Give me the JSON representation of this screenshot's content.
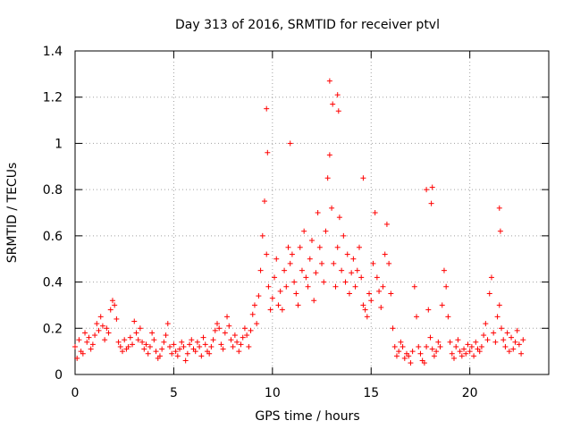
{
  "chart_data": {
    "type": "scatter",
    "title": "Day 313 of 2016, SRMTID for receiver ptvl",
    "xlabel": "GPS time / hours",
    "ylabel": "SRMTID / TECUs",
    "xlim": [
      0,
      24
    ],
    "ylim": [
      0,
      1.4
    ],
    "xticks": [
      "0",
      "5",
      "10",
      "15",
      "20"
    ],
    "xtick_values": [
      0,
      5,
      10,
      15,
      20
    ],
    "yticks": [
      "0",
      "0.2",
      "0.4",
      "0.6",
      "0.8",
      "1",
      "1.2",
      "1.4"
    ],
    "ytick_values": [
      0,
      0.2,
      0.4,
      0.6,
      0.8,
      1.0,
      1.2,
      1.4
    ],
    "grid": true,
    "marker": "+",
    "color": "#ff0000",
    "series": [
      {
        "name": "SRMTID",
        "x": [
          0.0,
          0.1,
          0.2,
          0.3,
          0.4,
          0.5,
          0.6,
          0.7,
          0.8,
          0.9,
          1.0,
          1.1,
          1.2,
          1.3,
          1.4,
          1.5,
          1.6,
          1.7,
          1.8,
          1.9,
          2.0,
          2.1,
          2.2,
          2.3,
          2.4,
          2.5,
          2.6,
          2.7,
          2.8,
          2.9,
          3.0,
          3.1,
          3.2,
          3.3,
          3.4,
          3.5,
          3.6,
          3.7,
          3.8,
          3.9,
          4.0,
          4.1,
          4.2,
          4.3,
          4.4,
          4.5,
          4.6,
          4.7,
          4.8,
          4.9,
          5.0,
          5.1,
          5.2,
          5.3,
          5.4,
          5.5,
          5.6,
          5.7,
          5.8,
          5.9,
          6.0,
          6.1,
          6.2,
          6.3,
          6.4,
          6.5,
          6.6,
          6.7,
          6.8,
          6.9,
          7.0,
          7.1,
          7.2,
          7.3,
          7.4,
          7.5,
          7.6,
          7.7,
          7.8,
          7.9,
          8.0,
          8.1,
          8.2,
          8.3,
          8.4,
          8.5,
          8.6,
          8.7,
          8.8,
          8.9,
          9.0,
          9.1,
          9.2,
          9.3,
          9.4,
          9.5,
          9.6,
          9.7,
          9.8,
          9.9,
          10.0,
          10.1,
          10.2,
          10.3,
          10.4,
          10.5,
          10.6,
          10.7,
          10.8,
          10.9,
          11.0,
          11.1,
          11.2,
          11.3,
          11.4,
          11.5,
          11.6,
          11.7,
          11.8,
          11.9,
          12.0,
          12.1,
          12.2,
          12.3,
          12.4,
          12.5,
          12.6,
          12.7,
          12.8,
          12.9,
          13.0,
          13.1,
          13.2,
          13.3,
          13.4,
          13.5,
          13.6,
          13.7,
          13.8,
          13.9,
          14.0,
          14.1,
          14.2,
          14.3,
          14.4,
          14.5,
          14.6,
          14.7,
          14.8,
          14.9,
          15.0,
          15.1,
          15.2,
          15.3,
          15.4,
          15.5,
          15.6,
          15.7,
          15.8,
          15.9,
          16.0,
          16.1,
          16.2,
          16.3,
          16.4,
          16.5,
          16.6,
          16.7,
          16.8,
          16.9,
          17.0,
          17.1,
          17.2,
          17.3,
          17.4,
          17.5,
          17.6,
          17.7,
          17.8,
          17.9,
          18.0,
          18.1,
          18.2,
          18.3,
          18.4,
          18.5,
          18.6,
          18.7,
          18.8,
          18.9,
          19.0,
          19.1,
          19.2,
          19.3,
          19.4,
          19.5,
          19.6,
          19.7,
          19.8,
          19.9,
          20.0,
          20.1,
          20.2,
          20.3,
          20.4,
          20.5,
          20.6,
          20.7,
          20.8,
          20.9,
          21.0,
          21.1,
          21.2,
          21.3,
          21.4,
          21.5,
          21.6,
          21.7,
          21.8,
          21.9,
          22.0,
          22.1,
          22.2,
          22.3,
          22.4,
          22.5,
          22.6,
          22.7,
          9.7,
          9.75,
          10.9,
          12.9,
          13.05,
          13.3,
          13.35,
          14.6,
          17.8,
          18.05,
          18.1,
          21.5,
          21.55
        ],
        "y": [
          0.12,
          0.07,
          0.15,
          0.1,
          0.09,
          0.18,
          0.14,
          0.16,
          0.11,
          0.13,
          0.17,
          0.22,
          0.19,
          0.25,
          0.21,
          0.15,
          0.2,
          0.18,
          0.28,
          0.32,
          0.3,
          0.24,
          0.14,
          0.12,
          0.1,
          0.15,
          0.11,
          0.12,
          0.16,
          0.13,
          0.23,
          0.18,
          0.15,
          0.2,
          0.14,
          0.11,
          0.13,
          0.09,
          0.12,
          0.18,
          0.15,
          0.1,
          0.07,
          0.08,
          0.11,
          0.14,
          0.17,
          0.22,
          0.12,
          0.09,
          0.13,
          0.1,
          0.08,
          0.11,
          0.14,
          0.12,
          0.06,
          0.09,
          0.13,
          0.15,
          0.11,
          0.1,
          0.14,
          0.12,
          0.08,
          0.16,
          0.13,
          0.1,
          0.09,
          0.12,
          0.15,
          0.19,
          0.22,
          0.2,
          0.13,
          0.11,
          0.18,
          0.25,
          0.21,
          0.15,
          0.12,
          0.17,
          0.14,
          0.1,
          0.13,
          0.16,
          0.2,
          0.17,
          0.12,
          0.19,
          0.26,
          0.3,
          0.22,
          0.34,
          0.45,
          0.6,
          0.75,
          0.52,
          0.38,
          0.28,
          0.33,
          0.42,
          0.5,
          0.3,
          0.36,
          0.28,
          0.45,
          0.38,
          0.55,
          0.48,
          0.52,
          0.4,
          0.35,
          0.3,
          0.55,
          0.45,
          0.62,
          0.42,
          0.38,
          0.5,
          0.58,
          0.32,
          0.44,
          0.7,
          0.55,
          0.48,
          0.4,
          0.62,
          0.85,
          0.95,
          0.72,
          0.48,
          0.38,
          0.55,
          0.68,
          0.45,
          0.6,
          0.4,
          0.52,
          0.35,
          0.44,
          0.5,
          0.38,
          0.45,
          0.55,
          0.42,
          0.3,
          0.28,
          0.25,
          0.35,
          0.32,
          0.48,
          0.7,
          0.42,
          0.36,
          0.29,
          0.38,
          0.52,
          0.65,
          0.48,
          0.35,
          0.2,
          0.12,
          0.08,
          0.1,
          0.14,
          0.12,
          0.07,
          0.09,
          0.08,
          0.05,
          0.1,
          0.38,
          0.25,
          0.12,
          0.09,
          0.06,
          0.05,
          0.12,
          0.28,
          0.16,
          0.11,
          0.08,
          0.1,
          0.14,
          0.12,
          0.3,
          0.45,
          0.38,
          0.25,
          0.14,
          0.09,
          0.07,
          0.12,
          0.15,
          0.1,
          0.08,
          0.11,
          0.09,
          0.13,
          0.1,
          0.12,
          0.08,
          0.14,
          0.11,
          0.1,
          0.12,
          0.17,
          0.22,
          0.15,
          0.35,
          0.42,
          0.18,
          0.14,
          0.25,
          0.3,
          0.2,
          0.15,
          0.12,
          0.18,
          0.1,
          0.16,
          0.11,
          0.14,
          0.19,
          0.13,
          0.09,
          0.15,
          1.15,
          0.96,
          1.0,
          1.27,
          1.17,
          1.21,
          1.14,
          0.85,
          0.8,
          0.74,
          0.81,
          0.72,
          0.62
        ]
      }
    ]
  }
}
